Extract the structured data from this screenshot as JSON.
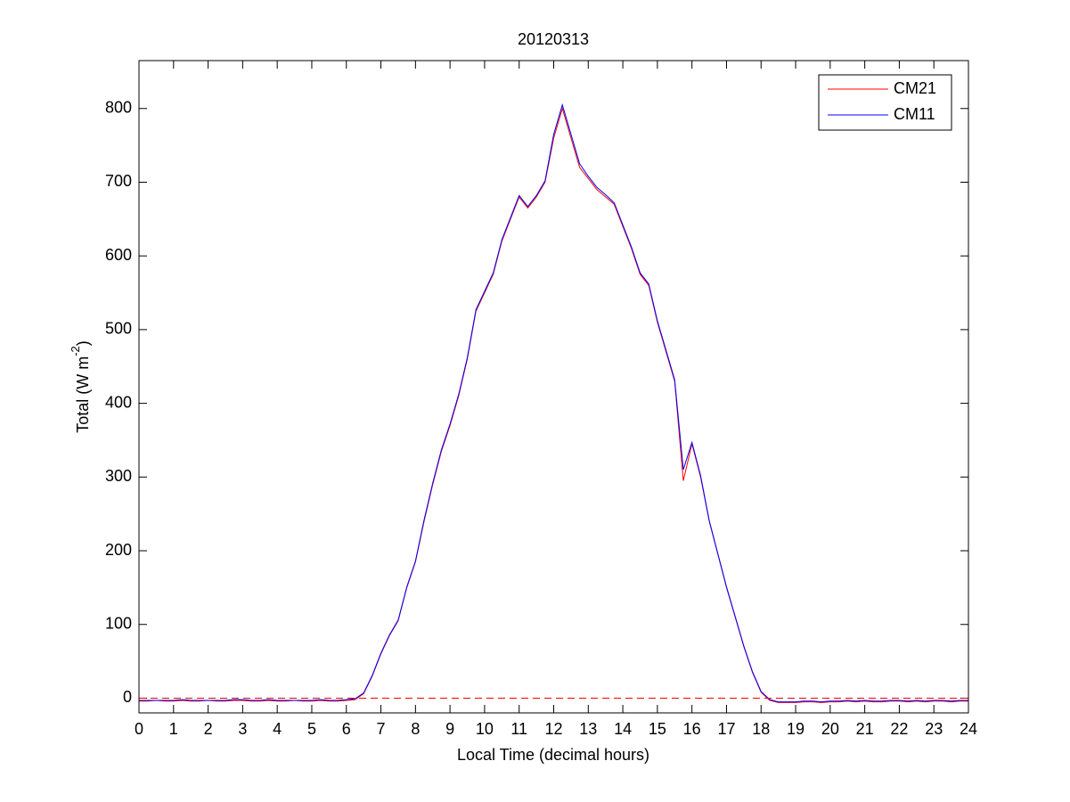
{
  "chart_data": {
    "type": "line",
    "title": "20120313",
    "xlabel": "Local Time (decimal hours)",
    "ylabel": {
      "text": "Total (W m",
      "sup": "-2",
      "tail": ")"
    },
    "x": [
      0,
      0.25,
      0.5,
      0.75,
      1,
      1.25,
      1.5,
      1.75,
      2,
      2.25,
      2.5,
      2.75,
      3,
      3.25,
      3.5,
      3.75,
      4,
      4.25,
      4.5,
      4.75,
      5,
      5.25,
      5.5,
      5.75,
      6,
      6.25,
      6.5,
      6.75,
      7,
      7.25,
      7.5,
      7.75,
      8,
      8.25,
      8.5,
      8.75,
      9,
      9.25,
      9.5,
      9.75,
      10,
      10.25,
      10.5,
      10.75,
      11,
      11.25,
      11.5,
      11.75,
      12,
      12.25,
      12.5,
      12.75,
      13,
      13.25,
      13.5,
      13.75,
      14,
      14.25,
      14.5,
      14.75,
      15,
      15.25,
      15.5,
      15.75,
      16,
      16.25,
      16.5,
      16.75,
      17,
      17.25,
      17.5,
      17.75,
      18,
      18.25,
      18.5,
      18.75,
      19,
      19.25,
      19.5,
      19.75,
      20,
      20.25,
      20.5,
      20.75,
      21,
      21.25,
      21.5,
      21.75,
      22,
      22.25,
      22.5,
      22.75,
      23,
      23.25,
      23.5,
      23.75,
      24
    ],
    "series": [
      {
        "name": "CM21",
        "color": "#ff0000",
        "values": [
          -4,
          -4,
          -3,
          -4,
          -4,
          -3,
          -4,
          -4,
          -3,
          -4,
          -4,
          -3,
          -3,
          -4,
          -4,
          -3,
          -4,
          -4,
          -3,
          -4,
          -4,
          -3,
          -4,
          -4,
          -3,
          -2,
          6,
          30,
          60,
          85,
          105,
          150,
          185,
          240,
          290,
          335,
          370,
          410,
          460,
          525,
          550,
          575,
          620,
          650,
          680,
          665,
          680,
          700,
          760,
          800,
          760,
          720,
          705,
          690,
          680,
          670,
          640,
          610,
          575,
          560,
          510,
          470,
          430,
          295,
          345,
          300,
          240,
          195,
          150,
          110,
          70,
          35,
          8,
          -3,
          -6,
          -6,
          -6,
          -5,
          -5,
          -6,
          -5,
          -5,
          -4,
          -5,
          -4,
          -5,
          -5,
          -4,
          -4,
          -5,
          -4,
          -5,
          -4,
          -4,
          -5,
          -4,
          -4
        ]
      },
      {
        "name": "CM11",
        "color": "#0000ff",
        "values": [
          -3,
          -3,
          -3,
          -3,
          -3,
          -2,
          -3,
          -3,
          -3,
          -3,
          -3,
          -2,
          -2,
          -3,
          -3,
          -2,
          -3,
          -3,
          -3,
          -3,
          -3,
          -2,
          -3,
          -3,
          -2,
          -1,
          7,
          31,
          61,
          86,
          106,
          151,
          186,
          242,
          292,
          337,
          372,
          412,
          462,
          527,
          552,
          577,
          622,
          652,
          682,
          667,
          682,
          702,
          765,
          805,
          765,
          725,
          708,
          693,
          683,
          672,
          642,
          612,
          577,
          562,
          512,
          472,
          432,
          310,
          347,
          302,
          241,
          196,
          151,
          111,
          71,
          36,
          9,
          -2,
          -5,
          -5,
          -5,
          -4,
          -4,
          -5,
          -4,
          -4,
          -3,
          -4,
          -3,
          -4,
          -4,
          -3,
          -3,
          -4,
          -3,
          -4,
          -3,
          -3,
          -4,
          -3,
          -3
        ]
      }
    ],
    "hline": {
      "value": 0,
      "color": "#ff0000"
    },
    "xlim": [
      0,
      24
    ],
    "xticks": [
      0,
      1,
      2,
      3,
      4,
      5,
      6,
      7,
      8,
      9,
      10,
      11,
      12,
      13,
      14,
      15,
      16,
      17,
      18,
      19,
      20,
      21,
      22,
      23,
      24
    ],
    "ylim": [
      -20,
      865
    ],
    "yticks": [
      0,
      100,
      200,
      300,
      400,
      500,
      600,
      700,
      800
    ],
    "legend": "northeast"
  }
}
